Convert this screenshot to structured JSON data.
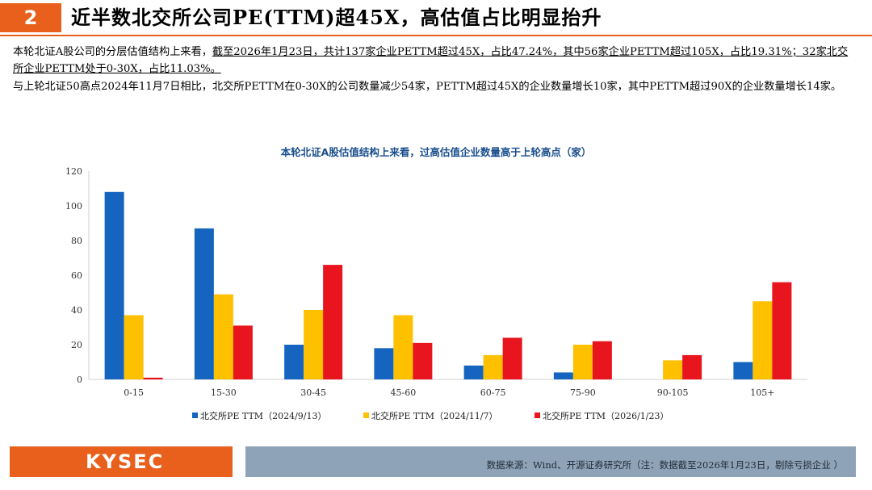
{
  "header": {
    "section_number": "2",
    "title": "近半数北交所公司PE(TTM)超45X，高估值占比明显抬升"
  },
  "paragraphs": {
    "p1_plain": "本轮北证A股公司的分层估值结构上来看，",
    "p1_underlined": "截至2026年1月23日，共计137家企业PETTM超过45X，占比47.24%，其中56家企业PETTM超过105X，占比19.31%；32家北交所企业PETTM处于0-30X，占比11.03%。",
    "p2": "与上轮北证50高点2024年11月7日相比，北交所PETTM在0-30X的公司数量减少54家，PETTM超过45X的企业数量增长10家，其中PETTM超过90X的企业数量增长14家。"
  },
  "chart_data": {
    "type": "bar",
    "title": "本轮北证A股估值结构上来看，过高估值企业数量高于上轮高点（家）",
    "categories": [
      "0-15",
      "15-30",
      "30-45",
      "45-60",
      "60-75",
      "75-90",
      "90-105",
      "105+"
    ],
    "series": [
      {
        "name": "北交所PE TTM（2024/9/13）",
        "color": "#1565c0",
        "values": [
          108,
          87,
          20,
          18,
          8,
          4,
          0,
          10
        ]
      },
      {
        "name": "北交所PE TTM（2024/11/7）",
        "color": "#ffc000",
        "values": [
          37,
          49,
          40,
          37,
          14,
          20,
          11,
          45
        ]
      },
      {
        "name": "北交所PE TTM（2026/1/23）",
        "color": "#e8141e",
        "values": [
          1,
          31,
          66,
          21,
          24,
          22,
          14,
          56
        ]
      }
    ],
    "ylim": [
      0,
      120
    ],
    "yticks": [
      0,
      20,
      40,
      60,
      80,
      100,
      120
    ],
    "legend_position": "bottom",
    "grid": false
  },
  "footer": {
    "logo": "KYSEC",
    "source": "数据来源：Wind、开源证券研究所（注：数据截至2026年1月23日，剔除亏损企业 ）"
  }
}
